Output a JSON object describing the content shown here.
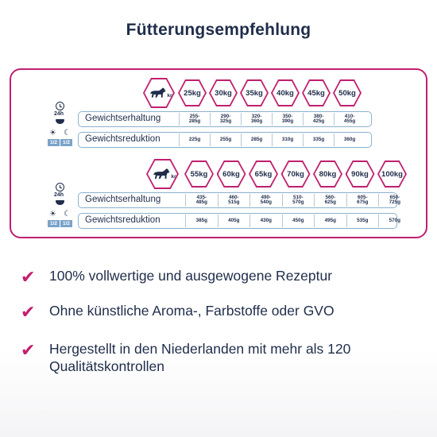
{
  "title": "Fütterungsempfehlung",
  "table1": {
    "weights": [
      "25kg",
      "30kg",
      "35kg",
      "40kg",
      "45kg",
      "50kg"
    ],
    "dog_unit": "kg",
    "maintenance_label": "Gewichtserhaltung",
    "maintenance": [
      "255-\n285g",
      "290-\n325g",
      "320-\n360g",
      "350-\n390g",
      "380-\n425g",
      "410-\n455g"
    ],
    "reduction_label": "Gewichtsreduktion",
    "reduction": [
      "225g",
      "255g",
      "285g",
      "310g",
      "335g",
      "360g"
    ]
  },
  "table2": {
    "weights": [
      "55kg",
      "60kg",
      "65kg",
      "70kg",
      "80kg",
      "90kg",
      "100kg"
    ],
    "dog_unit": "kg",
    "maintenance_label": "Gewichtserhaltung",
    "maintenance": [
      "435-\n485g",
      "460-\n515g",
      "490-\n540g",
      "510-\n570g",
      "560-\n625g",
      "605-\n675g",
      "650-\n725g"
    ],
    "reduction_label": "Gewichtsreduktion",
    "reduction": [
      "385g",
      "405g",
      "430g",
      "450g",
      "495g",
      "535g",
      "570g"
    ]
  },
  "icons": {
    "h24": "24h",
    "half": "1/2"
  },
  "benefits": [
    "100% vollwertige und ausgewogene Rezeptur",
    "Ohne künstliche Aroma-, Farbstoffe oder GVO",
    "Hergestellt in den Niederlanden mit mehr als 120 Qualitätskontrollen"
  ],
  "colors": {
    "accent": "#c0206f",
    "navy": "#1f2d4a",
    "row_border": "#8ab1cf"
  }
}
